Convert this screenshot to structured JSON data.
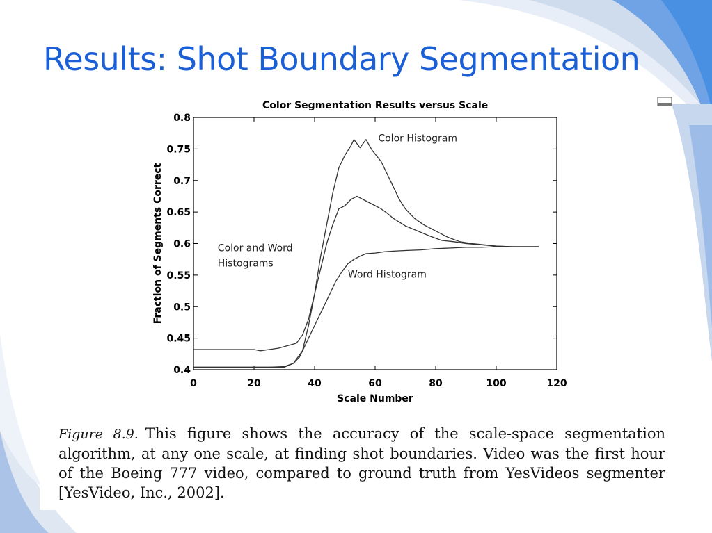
{
  "slide": {
    "title": "Results: Shot Boundary Segmentation",
    "accent_color": "#1a5fd6",
    "background_accent": "#4a90e2"
  },
  "chart_data": {
    "type": "line",
    "title": "Color Segmentation Results versus Scale",
    "xlabel": "Scale Number",
    "ylabel": "Fraction of Segments Correct",
    "xlim": [
      0,
      120
    ],
    "ylim": [
      0.4,
      0.8
    ],
    "x_ticks": [
      0,
      20,
      40,
      60,
      80,
      100,
      120
    ],
    "y_ticks": [
      0.4,
      0.45,
      0.5,
      0.55,
      0.6,
      0.65,
      0.7,
      0.75,
      0.8
    ],
    "grid": false,
    "series": [
      {
        "name": "Color Histogram",
        "points": [
          [
            0,
            0.404
          ],
          [
            20,
            0.404
          ],
          [
            30,
            0.404
          ],
          [
            33,
            0.41
          ],
          [
            36,
            0.43
          ],
          [
            38,
            0.47
          ],
          [
            40,
            0.52
          ],
          [
            42,
            0.58
          ],
          [
            44,
            0.63
          ],
          [
            46,
            0.68
          ],
          [
            48,
            0.72
          ],
          [
            50,
            0.74
          ],
          [
            52,
            0.755
          ],
          [
            53,
            0.765
          ],
          [
            55,
            0.752
          ],
          [
            57,
            0.765
          ],
          [
            59,
            0.748
          ],
          [
            62,
            0.73
          ],
          [
            65,
            0.7
          ],
          [
            68,
            0.67
          ],
          [
            70,
            0.655
          ],
          [
            73,
            0.64
          ],
          [
            76,
            0.63
          ],
          [
            80,
            0.62
          ],
          [
            84,
            0.61
          ],
          [
            88,
            0.603
          ],
          [
            92,
            0.6
          ],
          [
            96,
            0.598
          ],
          [
            100,
            0.596
          ],
          [
            105,
            0.595
          ],
          [
            110,
            0.595
          ],
          [
            114,
            0.595
          ]
        ]
      },
      {
        "name": "Color and Word Histograms",
        "points": [
          [
            0,
            0.432
          ],
          [
            20,
            0.432
          ],
          [
            22,
            0.43
          ],
          [
            25,
            0.432
          ],
          [
            28,
            0.434
          ],
          [
            31,
            0.438
          ],
          [
            34,
            0.442
          ],
          [
            36,
            0.455
          ],
          [
            38,
            0.48
          ],
          [
            40,
            0.52
          ],
          [
            42,
            0.56
          ],
          [
            44,
            0.6
          ],
          [
            46,
            0.63
          ],
          [
            48,
            0.655
          ],
          [
            50,
            0.66
          ],
          [
            52,
            0.67
          ],
          [
            54,
            0.675
          ],
          [
            56,
            0.67
          ],
          [
            58,
            0.665
          ],
          [
            60,
            0.66
          ],
          [
            62,
            0.655
          ],
          [
            64,
            0.648
          ],
          [
            66,
            0.64
          ],
          [
            70,
            0.628
          ],
          [
            74,
            0.62
          ],
          [
            78,
            0.612
          ],
          [
            82,
            0.605
          ],
          [
            86,
            0.603
          ],
          [
            90,
            0.6
          ],
          [
            95,
            0.598
          ],
          [
            100,
            0.596
          ],
          [
            106,
            0.595
          ],
          [
            114,
            0.595
          ]
        ]
      },
      {
        "name": "Word Histogram",
        "points": [
          [
            0,
            0.404
          ],
          [
            20,
            0.404
          ],
          [
            25,
            0.404
          ],
          [
            30,
            0.405
          ],
          [
            33,
            0.41
          ],
          [
            35,
            0.42
          ],
          [
            37,
            0.44
          ],
          [
            39,
            0.46
          ],
          [
            41,
            0.48
          ],
          [
            43,
            0.5
          ],
          [
            45,
            0.52
          ],
          [
            47,
            0.54
          ],
          [
            49,
            0.555
          ],
          [
            51,
            0.568
          ],
          [
            53,
            0.575
          ],
          [
            55,
            0.58
          ],
          [
            57,
            0.584
          ],
          [
            60,
            0.585
          ],
          [
            63,
            0.587
          ],
          [
            66,
            0.588
          ],
          [
            70,
            0.589
          ],
          [
            75,
            0.59
          ],
          [
            80,
            0.592
          ],
          [
            85,
            0.593
          ],
          [
            90,
            0.594
          ],
          [
            95,
            0.594
          ],
          [
            100,
            0.595
          ],
          [
            106,
            0.595
          ],
          [
            114,
            0.595
          ]
        ]
      }
    ],
    "annotations": [
      {
        "lines": [
          "Color Histogram"
        ],
        "x": 61,
        "y": 0.762
      },
      {
        "lines": [
          "Color and Word",
          "Histograms"
        ],
        "x": 8,
        "y": 0.588
      },
      {
        "lines": [
          "Word Histogram"
        ],
        "x": 51,
        "y": 0.546
      }
    ]
  },
  "caption": {
    "label": "Figure 8.9.",
    "text": "This figure shows the accuracy of the scale-space segmentation algorithm, at any one scale, at finding shot boundaries. Video was the first hour of the Boeing 777 video, compared to ground truth from YesVideos segmenter [YesVideo, Inc., 2002]."
  }
}
